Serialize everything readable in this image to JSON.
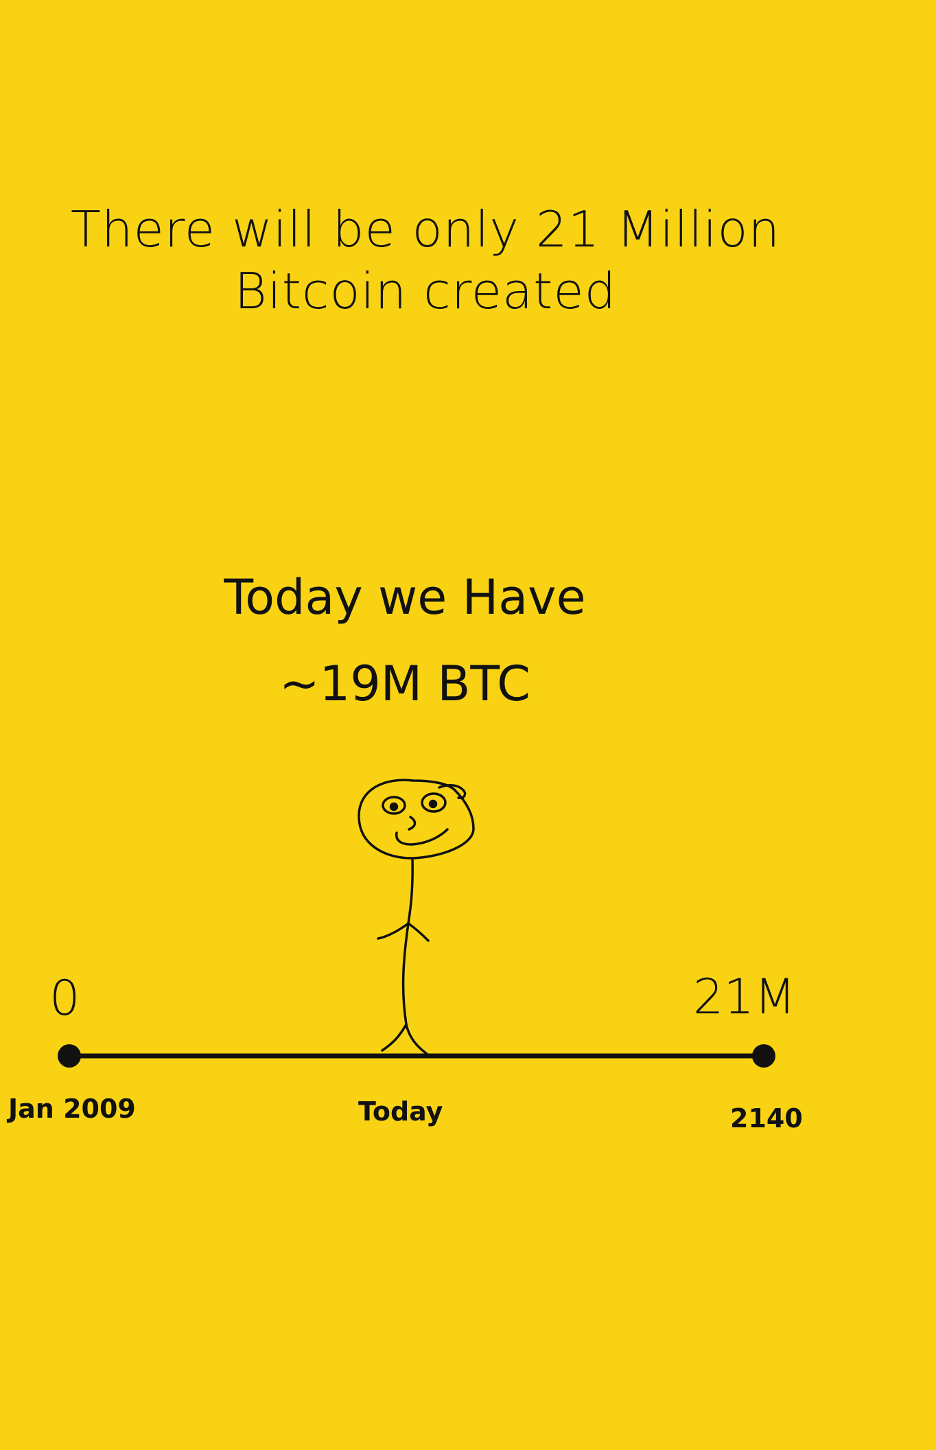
{
  "background_color": "#F9D313",
  "ink_color": "#111111",
  "headline": {
    "line1": "There will be only 21 Million",
    "line2": "Bitcoin created"
  },
  "status": {
    "today_we_have": "Today we Have",
    "amount": "~19M BTC"
  },
  "timeline": {
    "start_value": "0",
    "end_value": "21M",
    "start_date": "Jan 2009",
    "current_label": "Today",
    "end_date": "2140",
    "current_marker_icon": "stick-figure-icon"
  }
}
